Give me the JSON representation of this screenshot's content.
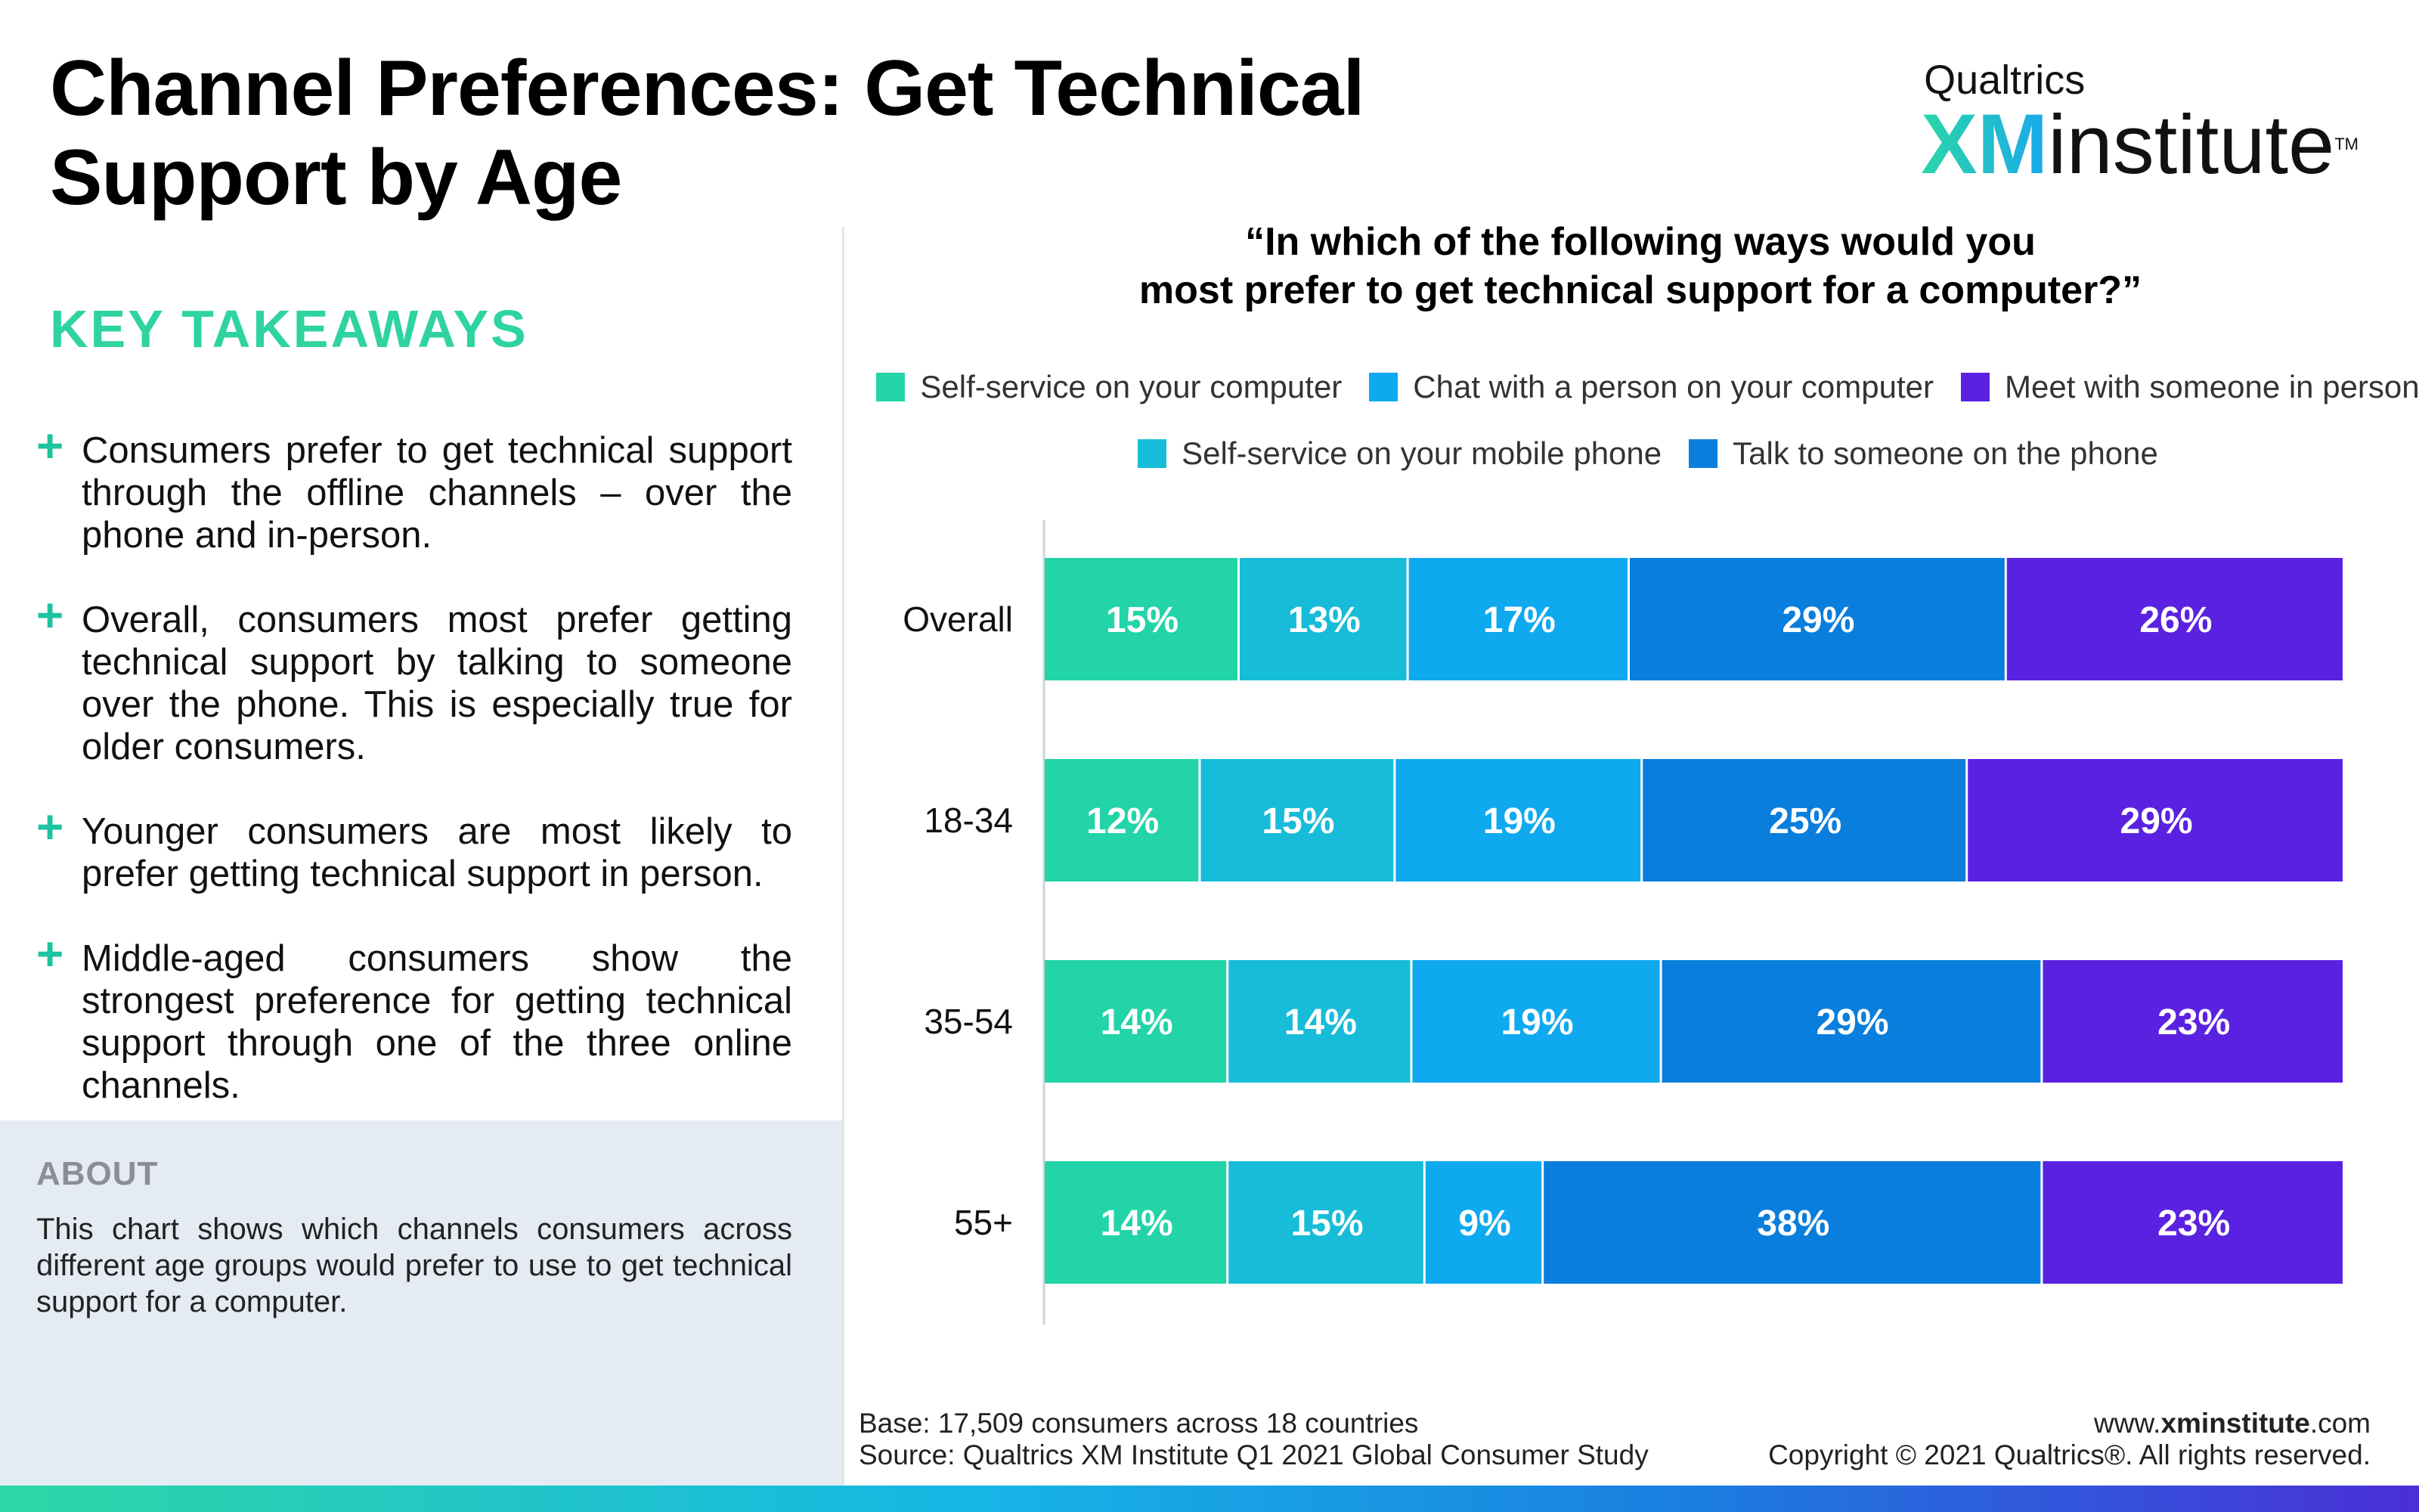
{
  "header": {
    "title_line1": "Channel Preferences: Get Technical",
    "title_line2": "Support by Age"
  },
  "logo": {
    "top": "Qualtrics",
    "xm": "XM",
    "word": "institute",
    "tm": "TM"
  },
  "takeaways": {
    "heading": "KEY TAKEAWAYS",
    "items": [
      "Consumers prefer to get technical support through the offline channels – over the phone and in-person.",
      "Overall, consumers most prefer getting technical support by talking to someone over the phone. This is especially true for older consumers.",
      "Younger consumers are most likely to prefer getting technical support in person.",
      "Middle-aged consumers show the strongest preference for getting technical support through one of the three online channels."
    ]
  },
  "about": {
    "heading": "ABOUT",
    "text": "This chart shows which channels consumers across different age groups would prefer to use to get technical support for a computer."
  },
  "question": {
    "line1": "“In which of the following ways would you",
    "line2": "most prefer to get technical support for a computer?”"
  },
  "chart_data": {
    "type": "bar",
    "orientation": "horizontal",
    "stacked": true,
    "categories": [
      "Overall",
      "18-34",
      "35-54",
      "55+"
    ],
    "series": [
      {
        "name": "Self-service on your computer",
        "color": "#22d4a8",
        "values": [
          15,
          12,
          14,
          14
        ]
      },
      {
        "name": "Self-service on your mobile phone",
        "color": "#17bcd9",
        "values": [
          13,
          15,
          14,
          15
        ]
      },
      {
        "name": "Chat with a person on your computer",
        "color": "#0fa9ef",
        "values": [
          17,
          19,
          19,
          9
        ]
      },
      {
        "name": "Talk to someone on the phone",
        "color": "#0a7edc",
        "values": [
          29,
          25,
          29,
          38
        ]
      },
      {
        "name": "Meet with someone in person",
        "color": "#5a22e0",
        "values": [
          26,
          29,
          23,
          23
        ]
      }
    ],
    "value_suffix": "%",
    "legend_placement": "top",
    "grid": false
  },
  "footer": {
    "base": "Base: 17,509 consumers across 18 countries",
    "source": "Source: Qualtrics XM Institute Q1 2021 Global Consumer Study",
    "url_prefix": "www.",
    "url_bold": "xminstitute",
    "url_suffix": ".com",
    "copyright": "Copyright © 2021 Qualtrics®. All rights reserved."
  }
}
